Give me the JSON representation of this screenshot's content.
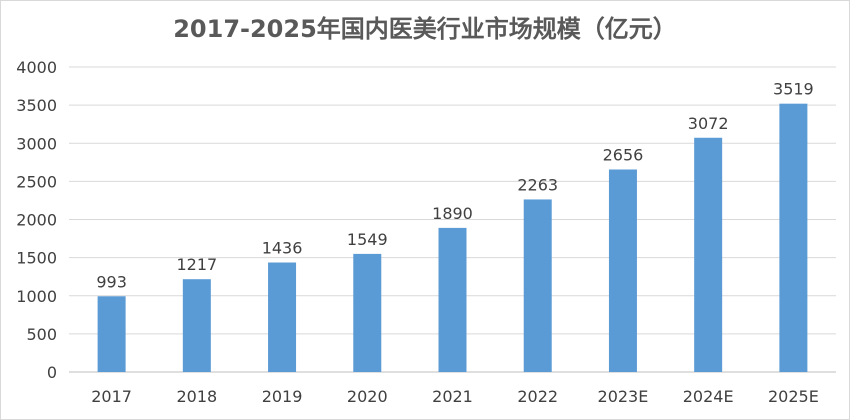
{
  "chart_data": {
    "type": "bar",
    "title": "2017-2025年国内医美行业市场规模（亿元）",
    "categories": [
      "2017",
      "2018",
      "2019",
      "2020",
      "2021",
      "2022",
      "2023E",
      "2024E",
      "2025E"
    ],
    "values": [
      993,
      1217,
      1436,
      1549,
      1890,
      2263,
      2656,
      3072,
      3519
    ],
    "ylim": [
      0,
      4000
    ],
    "yticks": [
      0,
      500,
      1000,
      1500,
      2000,
      2500,
      3000,
      3500,
      4000
    ],
    "grid": true,
    "legend": "none",
    "xlabel": "",
    "ylabel": "",
    "bar_color": "#5b9bd5",
    "data_labels": true
  }
}
